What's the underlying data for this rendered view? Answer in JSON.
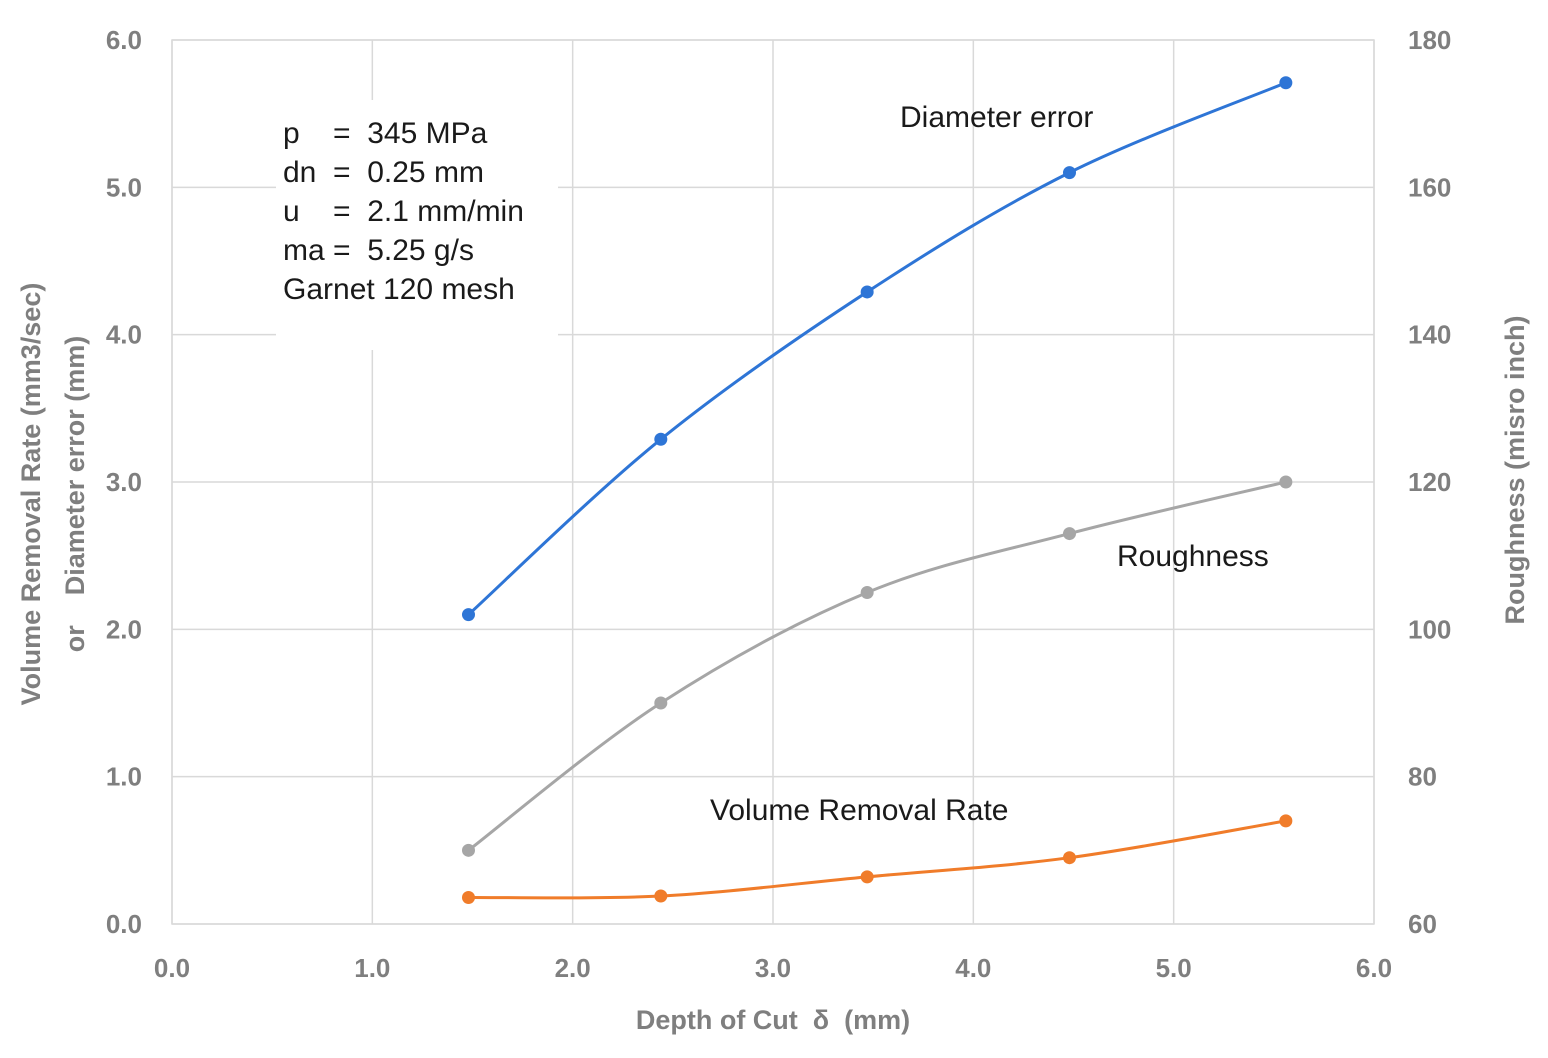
{
  "chart_data": {
    "type": "line",
    "title": "",
    "xlabel": "Depth of Cut  δ  (mm)",
    "ylabel_left_line1": "Volume Removal Rate (mm3/sec)",
    "ylabel_left_line2": "or    Diameter error (mm)",
    "ylabel_right": "Roughness (misro inch)",
    "xlim": [
      0,
      6
    ],
    "ylim_left": [
      0,
      6
    ],
    "ylim_right": [
      60,
      180
    ],
    "x_ticks": [
      "0.0",
      "1.0",
      "2.0",
      "3.0",
      "4.0",
      "5.0",
      "6.0"
    ],
    "y_left_ticks": [
      "0.0",
      "1.0",
      "2.0",
      "3.0",
      "4.0",
      "5.0",
      "6.0"
    ],
    "y_right_ticks": [
      "60",
      "80",
      "100",
      "120",
      "140",
      "160",
      "180"
    ],
    "grid": true,
    "series": [
      {
        "name": "Diameter error",
        "axis": "left",
        "color": "#2e75d6",
        "x": [
          1.48,
          2.44,
          3.47,
          4.48,
          5.56
        ],
        "values": [
          2.1,
          3.29,
          4.29,
          5.1,
          5.71
        ]
      },
      {
        "name": "Roughness",
        "axis": "right",
        "color": "#a6a6a6",
        "x": [
          1.48,
          2.44,
          3.47,
          4.48,
          5.56
        ],
        "values": [
          70,
          90,
          105,
          113,
          120
        ]
      },
      {
        "name": "Volume Removal Rate",
        "axis": "left",
        "color": "#f07c2a",
        "x": [
          1.48,
          2.44,
          3.47,
          4.48,
          5.56
        ],
        "values": [
          0.18,
          0.19,
          0.32,
          0.45,
          0.7
        ]
      }
    ],
    "annotations": {
      "parameters": [
        "p    =  345 MPa",
        "dn  =  0.25 mm",
        "u    =  2.1 mm/min",
        "ma =  5.25 g/s",
        "Garnet 120 mesh"
      ]
    }
  }
}
